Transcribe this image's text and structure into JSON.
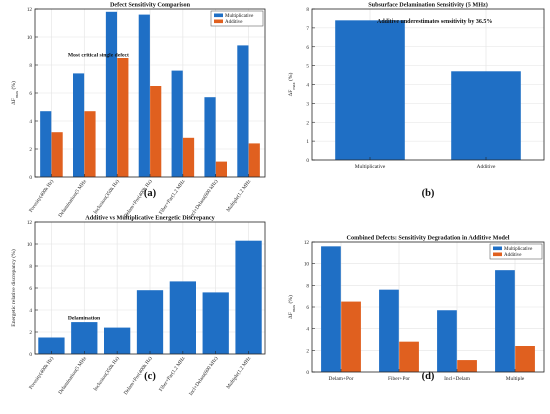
{
  "colors": {
    "multiplicative": "#1f6fc5",
    "additive": "#e0601f",
    "axis": "#262626",
    "grid": "#e3e3e3"
  },
  "panel_labels": [
    "(a)",
    "(b)",
    "(c)",
    "(d)"
  ],
  "chart_data": [
    {
      "type": "bar",
      "title": "Defect Sensitivity Comparison",
      "ylabel": "ΔF_max (%)",
      "ylim": [
        0,
        12
      ],
      "yticks": [
        0,
        2,
        4,
        6,
        8,
        10,
        12
      ],
      "categories": [
        "Porosity(400k Hz)",
        "Delamination(5 MHz",
        "Inclusion(350k Hz)",
        "Delam+Por(400k Hz)",
        "Fiber+Par(1.2 MHz",
        "Incl+Delam(600 kHz)",
        "Multiple(1.2 MHz"
      ],
      "series": [
        {
          "name": "Multiplicative",
          "values": [
            4.7,
            7.4,
            11.8,
            11.6,
            7.6,
            5.7,
            9.4
          ]
        },
        {
          "name": "Additive",
          "values": [
            3.2,
            4.7,
            8.5,
            6.5,
            2.8,
            1.1,
            2.4
          ]
        }
      ],
      "annotations": [
        {
          "text": "Most critical single defect",
          "x": 1,
          "y": 8.6
        }
      ],
      "legend": "top-right",
      "grid": true
    },
    {
      "type": "bar",
      "title": "Subsurface Delamination Sensitivity (5 MHz)",
      "ylabel": "ΔF_max (%)",
      "ylim": [
        0,
        8
      ],
      "yticks": [
        0,
        1,
        2,
        3,
        4,
        5,
        6,
        7,
        8
      ],
      "categories": [
        "Multiplicative",
        "Additive"
      ],
      "values": [
        7.4,
        4.7
      ],
      "annotations": [
        {
          "text": "Additive underestimates sensitivity by 36.5%"
        }
      ],
      "grid": true
    },
    {
      "type": "bar",
      "title": "Additive vs Multiplicative Energetic Discrepancy",
      "ylabel": "Energetic relative discrepancy (%)",
      "ylim": [
        0,
        12
      ],
      "yticks": [
        0,
        2,
        4,
        6,
        8,
        10,
        12
      ],
      "categories": [
        "Porosity(400k Hz)",
        "Delamination(5 MHz",
        "Inclusion(350k Hz)",
        "Delam+Por(400k Hz)",
        "Fiber+Par(1.2 MHz",
        "Incl+Delam(600 kHz)",
        "Multiple(1.2 MHz"
      ],
      "values": [
        1.5,
        2.9,
        2.4,
        5.8,
        6.6,
        5.6,
        10.3
      ],
      "annotations": [
        {
          "text": "Delamination",
          "x": 1,
          "y": 3.15
        }
      ],
      "grid": true
    },
    {
      "type": "bar",
      "title": "Combined Defects: Sensitivity Degradation in Additive Model",
      "ylabel": "ΔF_max (%)",
      "ylim": [
        0,
        12
      ],
      "yticks": [
        0,
        2,
        4,
        6,
        8,
        10,
        12
      ],
      "categories": [
        "Delam+Por",
        "Fiber+Por",
        "Incl+Delam",
        "Multiple"
      ],
      "series": [
        {
          "name": "Multiplicative",
          "values": [
            11.6,
            7.6,
            5.7,
            9.4
          ]
        },
        {
          "name": "Additive",
          "values": [
            6.5,
            2.8,
            1.1,
            2.4
          ]
        }
      ],
      "legend": "top-right",
      "grid": true
    }
  ]
}
